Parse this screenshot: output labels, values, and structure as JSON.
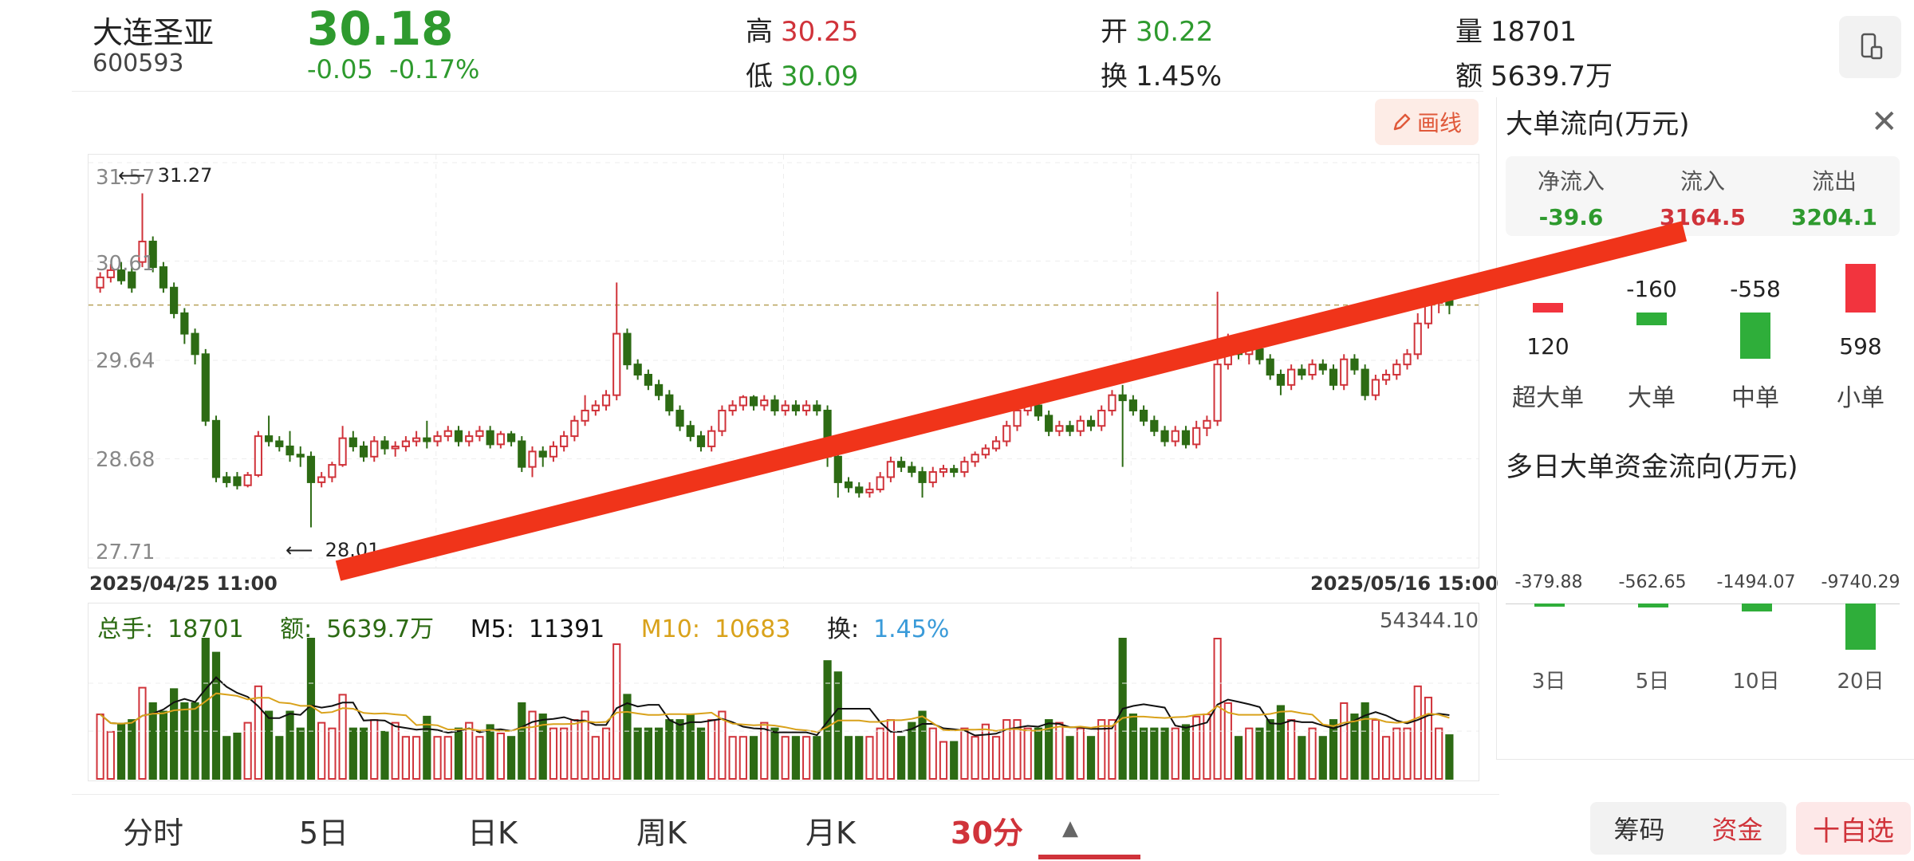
{
  "stock": {
    "name": "大连圣亚",
    "code": "600593",
    "price": "30.18",
    "change": "-0.05",
    "change_pct": "-0.17%"
  },
  "quote": {
    "high_label": "高",
    "high": "30.25",
    "low_label": "低",
    "low": "30.09",
    "open_label": "开",
    "open": "30.22",
    "turnover_label": "换",
    "turnover": "1.45%",
    "volume_label": "量",
    "volume": "18701",
    "amount_label": "额",
    "amount": "5639.7万"
  },
  "toolbar": {
    "draw_label": "画线",
    "draw_icon": "pencil-icon",
    "rotate_icon": "phone-rotate-icon"
  },
  "chart": {
    "y_ticks": [
      "31.57",
      "30.61",
      "29.64",
      "28.68",
      "27.71"
    ],
    "max_marker": "31.27",
    "min_marker": "28.01",
    "start_date": "2025/04/25 11:00",
    "end_date": "2025/05/16 15:00",
    "vol_total_label": "总手:",
    "vol_total": "18701",
    "vol_amount_label": "额:",
    "vol_amount": "5639.7万",
    "m5_label": "M5:",
    "m5": "11391",
    "m10_label": "M10:",
    "m10": "10683",
    "vol_turn_label": "换:",
    "vol_turn": "1.45%",
    "vol_max": "54344.10",
    "colors": {
      "up": "#d0333a",
      "down": "#2d6b14",
      "m5": "#111111",
      "m10": "#d9a21b",
      "turn": "#3a9bd9",
      "annotation": "#f0341a"
    }
  },
  "chart_data": {
    "type": "candlestick",
    "x_start": "2025/04/25 11:00",
    "x_end": "2025/05/16 15:00",
    "ylim": [
      27.71,
      31.57
    ],
    "max_marker": 31.27,
    "min_marker": 28.01,
    "last_price": 30.18,
    "candles": [
      [
        30.35,
        30.45,
        30.3,
        30.5
      ],
      [
        30.45,
        30.52,
        30.4,
        30.58
      ],
      [
        30.52,
        30.42,
        30.38,
        30.6
      ],
      [
        30.5,
        30.35,
        30.3,
        30.55
      ],
      [
        30.6,
        30.8,
        30.55,
        31.27
      ],
      [
        30.8,
        30.55,
        30.5,
        30.85
      ],
      [
        30.55,
        30.35,
        30.3,
        30.6
      ],
      [
        30.35,
        30.1,
        30.05,
        30.4
      ],
      [
        30.1,
        29.9,
        29.8,
        30.15
      ],
      [
        29.9,
        29.7,
        29.6,
        29.95
      ],
      [
        29.7,
        29.05,
        29.0,
        29.75
      ],
      [
        29.05,
        28.5,
        28.45,
        29.1
      ],
      [
        28.5,
        28.45,
        28.4,
        28.55
      ],
      [
        28.5,
        28.42,
        28.38,
        28.55
      ],
      [
        28.42,
        28.52,
        28.4,
        28.55
      ],
      [
        28.52,
        28.9,
        28.5,
        28.95
      ],
      [
        28.9,
        28.85,
        28.8,
        29.1
      ],
      [
        28.85,
        28.8,
        28.75,
        28.9
      ],
      [
        28.8,
        28.72,
        28.65,
        28.95
      ],
      [
        28.72,
        28.7,
        28.6,
        28.8
      ],
      [
        28.7,
        28.45,
        28.01,
        28.75
      ],
      [
        28.45,
        28.5,
        28.4,
        28.55
      ],
      [
        28.5,
        28.62,
        28.45,
        28.65
      ],
      [
        28.62,
        28.88,
        28.6,
        29.0
      ],
      [
        28.88,
        28.8,
        28.75,
        28.95
      ],
      [
        28.8,
        28.7,
        28.65,
        28.85
      ],
      [
        28.7,
        28.85,
        28.65,
        28.9
      ],
      [
        28.85,
        28.78,
        28.72,
        28.9
      ],
      [
        28.78,
        28.8,
        28.7,
        28.85
      ],
      [
        28.8,
        28.85,
        28.75,
        28.9
      ],
      [
        28.85,
        28.88,
        28.8,
        28.95
      ],
      [
        28.88,
        28.85,
        28.78,
        29.05
      ],
      [
        28.85,
        28.9,
        28.8,
        28.95
      ],
      [
        28.9,
        28.95,
        28.85,
        29.0
      ],
      [
        28.95,
        28.85,
        28.8,
        29.0
      ],
      [
        28.85,
        28.9,
        28.8,
        28.95
      ],
      [
        28.9,
        28.95,
        28.85,
        29.0
      ],
      [
        28.95,
        28.82,
        28.78,
        29.0
      ],
      [
        28.82,
        28.92,
        28.78,
        28.95
      ],
      [
        28.92,
        28.85,
        28.8,
        28.95
      ],
      [
        28.85,
        28.6,
        28.55,
        28.9
      ],
      [
        28.6,
        28.75,
        28.5,
        28.8
      ],
      [
        28.75,
        28.7,
        28.6,
        28.8
      ],
      [
        28.7,
        28.8,
        28.65,
        28.85
      ],
      [
        28.8,
        28.9,
        28.75,
        28.95
      ],
      [
        28.9,
        29.05,
        28.85,
        29.1
      ],
      [
        29.05,
        29.15,
        29.0,
        29.3
      ],
      [
        29.15,
        29.2,
        29.1,
        29.25
      ],
      [
        29.2,
        29.3,
        29.15,
        29.35
      ],
      [
        29.3,
        29.9,
        29.25,
        30.4
      ],
      [
        29.9,
        29.6,
        29.55,
        29.95
      ],
      [
        29.6,
        29.5,
        29.45,
        29.65
      ],
      [
        29.5,
        29.4,
        29.35,
        29.55
      ],
      [
        29.4,
        29.3,
        29.25,
        29.45
      ],
      [
        29.3,
        29.15,
        29.1,
        29.35
      ],
      [
        29.15,
        29.0,
        28.95,
        29.2
      ],
      [
        29.0,
        28.9,
        28.85,
        29.05
      ],
      [
        28.9,
        28.8,
        28.75,
        28.95
      ],
      [
        28.8,
        28.95,
        28.75,
        29.0
      ],
      [
        28.95,
        29.15,
        28.9,
        29.2
      ],
      [
        29.15,
        29.2,
        29.1,
        29.25
      ],
      [
        29.2,
        29.28,
        29.15,
        29.3
      ],
      [
        29.28,
        29.2,
        29.15,
        29.3
      ],
      [
        29.2,
        29.25,
        29.15,
        29.3
      ],
      [
        29.25,
        29.15,
        29.1,
        29.3
      ],
      [
        29.15,
        29.2,
        29.1,
        29.25
      ],
      [
        29.2,
        29.15,
        29.1,
        29.25
      ],
      [
        29.15,
        29.2,
        29.1,
        29.25
      ],
      [
        29.2,
        29.15,
        29.1,
        29.25
      ],
      [
        29.15,
        28.7,
        28.6,
        29.2
      ],
      [
        28.7,
        28.45,
        28.3,
        28.75
      ],
      [
        28.45,
        28.4,
        28.35,
        28.5
      ],
      [
        28.4,
        28.35,
        28.3,
        28.45
      ],
      [
        28.35,
        28.38,
        28.3,
        28.45
      ],
      [
        28.38,
        28.5,
        28.35,
        28.55
      ],
      [
        28.5,
        28.65,
        28.45,
        28.7
      ],
      [
        28.65,
        28.6,
        28.55,
        28.7
      ],
      [
        28.6,
        28.55,
        28.5,
        28.65
      ],
      [
        28.55,
        28.45,
        28.3,
        28.6
      ],
      [
        28.45,
        28.55,
        28.4,
        28.6
      ],
      [
        28.55,
        28.58,
        28.5,
        28.62
      ],
      [
        28.58,
        28.55,
        28.5,
        28.62
      ],
      [
        28.55,
        28.65,
        28.5,
        28.7
      ],
      [
        28.65,
        28.72,
        28.6,
        28.75
      ],
      [
        28.72,
        28.78,
        28.68,
        28.82
      ],
      [
        28.78,
        28.85,
        28.75,
        28.9
      ],
      [
        28.85,
        29.0,
        28.8,
        29.05
      ],
      [
        29.0,
        29.15,
        28.95,
        29.2
      ],
      [
        29.15,
        29.2,
        29.1,
        29.3
      ],
      [
        29.2,
        29.1,
        29.05,
        29.25
      ],
      [
        29.1,
        28.95,
        28.9,
        29.15
      ],
      [
        28.95,
        29.0,
        28.9,
        29.05
      ],
      [
        29.0,
        28.95,
        28.9,
        29.05
      ],
      [
        28.95,
        29.05,
        28.9,
        29.1
      ],
      [
        29.05,
        29.0,
        28.95,
        29.1
      ],
      [
        29.0,
        29.15,
        28.95,
        29.2
      ],
      [
        29.15,
        29.3,
        29.1,
        29.35
      ],
      [
        29.3,
        29.25,
        28.6,
        29.4
      ],
      [
        29.25,
        29.15,
        29.1,
        29.3
      ],
      [
        29.15,
        29.05,
        29.0,
        29.2
      ],
      [
        29.05,
        28.95,
        28.9,
        29.1
      ],
      [
        28.95,
        28.85,
        28.8,
        29.0
      ],
      [
        28.85,
        28.95,
        28.8,
        29.0
      ],
      [
        28.95,
        28.82,
        28.78,
        29.0
      ],
      [
        28.82,
        28.98,
        28.78,
        29.05
      ],
      [
        28.98,
        29.05,
        28.9,
        29.1
      ],
      [
        29.05,
        29.6,
        29.0,
        30.31
      ],
      [
        29.6,
        29.75,
        29.55,
        29.9
      ],
      [
        29.75,
        29.7,
        29.65,
        29.8
      ],
      [
        29.7,
        29.75,
        29.6,
        29.8
      ],
      [
        29.75,
        29.65,
        29.6,
        29.8
      ],
      [
        29.65,
        29.5,
        29.45,
        29.7
      ],
      [
        29.5,
        29.4,
        29.3,
        29.55
      ],
      [
        29.4,
        29.55,
        29.35,
        29.6
      ],
      [
        29.55,
        29.5,
        29.45,
        29.6
      ],
      [
        29.5,
        29.6,
        29.45,
        29.65
      ],
      [
        29.6,
        29.55,
        29.5,
        29.65
      ],
      [
        29.55,
        29.4,
        29.35,
        29.6
      ],
      [
        29.4,
        29.65,
        29.35,
        29.7
      ],
      [
        29.65,
        29.55,
        29.5,
        29.7
      ],
      [
        29.55,
        29.3,
        29.25,
        29.6
      ],
      [
        29.3,
        29.45,
        29.25,
        29.5
      ],
      [
        29.45,
        29.5,
        29.4,
        29.55
      ],
      [
        29.5,
        29.6,
        29.45,
        29.65
      ],
      [
        29.6,
        29.7,
        29.55,
        29.75
      ],
      [
        29.7,
        30.0,
        29.65,
        30.1
      ],
      [
        30.0,
        30.2,
        29.95,
        30.25
      ],
      [
        30.2,
        30.22,
        30.1,
        30.3
      ],
      [
        30.22,
        30.18,
        30.09,
        30.25
      ]
    ]
  },
  "tabs": [
    "分时",
    "5日",
    "日K",
    "周K",
    "月K",
    "30分"
  ],
  "tab_arrow": "▲",
  "bottom_buttons": {
    "chips": "筹码",
    "capital": "资金",
    "add_watch": "十自选"
  },
  "big_order": {
    "title": "大单流向(万元)",
    "close_icon": "close-icon",
    "net_label": "净流入",
    "net": "-39.6",
    "in_label": "流入",
    "in": "3164.5",
    "out_label": "流出",
    "out": "3204.1",
    "bars": [
      {
        "label": "超大单",
        "value": "120"
      },
      {
        "label": "大单",
        "value": "-160"
      },
      {
        "label": "中单",
        "value": "-558"
      },
      {
        "label": "小单",
        "value": "598"
      }
    ]
  },
  "multi_day": {
    "title": "多日大单资金流向(万元)",
    "items": [
      {
        "label": "3日",
        "value": "-379.88"
      },
      {
        "label": "5日",
        "value": "-562.65"
      },
      {
        "label": "10日",
        "value": "-1494.07"
      },
      {
        "label": "20日",
        "value": "-9740.29"
      }
    ]
  }
}
